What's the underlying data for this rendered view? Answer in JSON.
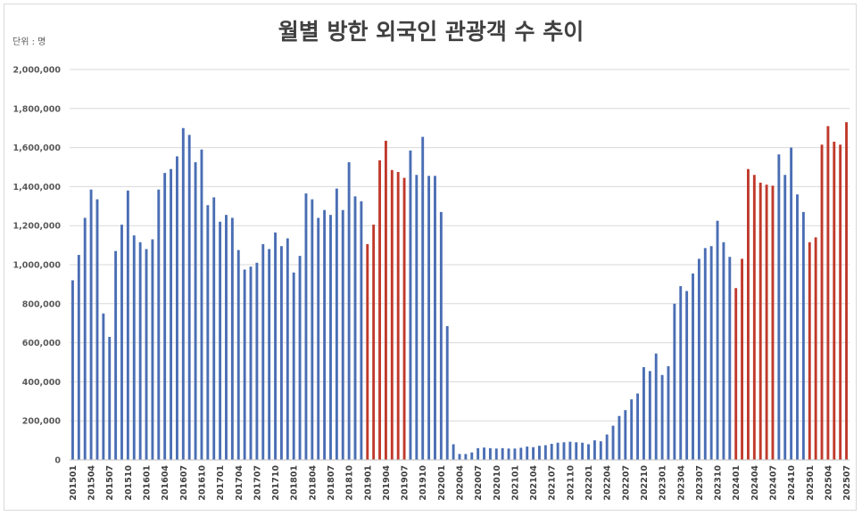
{
  "chart_data": {
    "type": "bar",
    "title": "월별 방한 외국인 관광객 수 추이",
    "unit_label": "단위 : 명",
    "ylim": [
      0,
      2000000
    ],
    "yticks": [
      "0",
      "200,000",
      "400,000",
      "600,000",
      "800,000",
      "1,000,000",
      "1,200,000",
      "1,400,000",
      "1,600,000",
      "1,800,000",
      "2,000,000"
    ],
    "grid": true,
    "colors": {
      "blue": "#4a6eb4",
      "red": "#c0392b",
      "grid": "#d9d9d9",
      "axis": "#bfbfbf"
    },
    "x_tick_labels": [
      "201501",
      "201504",
      "201507",
      "201510",
      "201601",
      "201604",
      "201607",
      "201610",
      "201701",
      "201704",
      "201707",
      "201710",
      "201801",
      "201804",
      "201807",
      "201810",
      "201901",
      "201904",
      "201907",
      "201910",
      "202001",
      "202004",
      "202007",
      "202010",
      "202101",
      "202104",
      "202107",
      "202110",
      "202201",
      "202204",
      "202207",
      "202210",
      "202301",
      "202304",
      "202307",
      "202310",
      "202401",
      "202404",
      "202407",
      "202410",
      "202501",
      "202504",
      "202507"
    ],
    "red_months": [
      "201901",
      "201902",
      "201903",
      "201904",
      "201905",
      "201906",
      "201907",
      "202401",
      "202402",
      "202403",
      "202404",
      "202405",
      "202406",
      "202407",
      "202501",
      "202502",
      "202503",
      "202504",
      "202505",
      "202506",
      "202507"
    ],
    "categories": [
      "201501",
      "201502",
      "201503",
      "201504",
      "201505",
      "201506",
      "201507",
      "201508",
      "201509",
      "201510",
      "201511",
      "201512",
      "201601",
      "201602",
      "201603",
      "201604",
      "201605",
      "201606",
      "201607",
      "201608",
      "201609",
      "201610",
      "201611",
      "201612",
      "201701",
      "201702",
      "201703",
      "201704",
      "201705",
      "201706",
      "201707",
      "201708",
      "201709",
      "201710",
      "201711",
      "201712",
      "201801",
      "201802",
      "201803",
      "201804",
      "201805",
      "201806",
      "201807",
      "201808",
      "201809",
      "201810",
      "201811",
      "201812",
      "201901",
      "201902",
      "201903",
      "201904",
      "201905",
      "201906",
      "201907",
      "201908",
      "201909",
      "201910",
      "201911",
      "201912",
      "202001",
      "202002",
      "202003",
      "202004",
      "202005",
      "202006",
      "202007",
      "202008",
      "202009",
      "202010",
      "202011",
      "202012",
      "202101",
      "202102",
      "202103",
      "202104",
      "202105",
      "202106",
      "202107",
      "202108",
      "202109",
      "202110",
      "202111",
      "202112",
      "202201",
      "202202",
      "202203",
      "202204",
      "202205",
      "202206",
      "202207",
      "202208",
      "202209",
      "202210",
      "202211",
      "202212",
      "202301",
      "202302",
      "202303",
      "202304",
      "202305",
      "202306",
      "202307",
      "202308",
      "202309",
      "202310",
      "202311",
      "202312",
      "202401",
      "202402",
      "202403",
      "202404",
      "202405",
      "202406",
      "202407",
      "202408",
      "202409",
      "202410",
      "202411",
      "202412",
      "202501",
      "202502",
      "202503",
      "202504",
      "202505",
      "202506",
      "202507"
    ],
    "values": [
      920000,
      1050000,
      1240000,
      1385000,
      1335000,
      750000,
      630000,
      1070000,
      1205000,
      1380000,
      1150000,
      1115000,
      1080000,
      1130000,
      1385000,
      1470000,
      1490000,
      1555000,
      1700000,
      1665000,
      1525000,
      1590000,
      1305000,
      1345000,
      1220000,
      1255000,
      1240000,
      1075000,
      975000,
      990000,
      1010000,
      1105000,
      1080000,
      1165000,
      1095000,
      1135000,
      960000,
      1045000,
      1365000,
      1335000,
      1240000,
      1280000,
      1255000,
      1390000,
      1280000,
      1525000,
      1350000,
      1325000,
      1105000,
      1205000,
      1535000,
      1635000,
      1485000,
      1475000,
      1445000,
      1585000,
      1460000,
      1655000,
      1455000,
      1455000,
      1270000,
      685000,
      80000,
      30000,
      30000,
      38000,
      60000,
      63000,
      60000,
      58000,
      60000,
      58000,
      58000,
      62000,
      68000,
      65000,
      72000,
      75000,
      82000,
      88000,
      90000,
      93000,
      90000,
      88000,
      80000,
      100000,
      95000,
      130000,
      175000,
      225000,
      255000,
      310000,
      340000,
      475000,
      455000,
      545000,
      435000,
      480000,
      800000,
      890000,
      865000,
      955000,
      1030000,
      1085000,
      1095000,
      1225000,
      1115000,
      1040000,
      880000,
      1030000,
      1490000,
      1460000,
      1420000,
      1410000,
      1405000,
      1565000,
      1460000,
      1600000,
      1360000,
      1270000,
      1115000,
      1140000,
      1615000,
      1710000,
      1630000,
      1615000,
      1730000
    ]
  }
}
